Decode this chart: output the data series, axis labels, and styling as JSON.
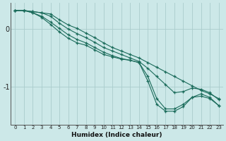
{
  "bg_color": "#cce8e8",
  "grid_color": "#aacccc",
  "line_color": "#1a6b5a",
  "marker_color": "#1a6b5a",
  "xlabel": "Humidex (Indice chaleur)",
  "xlim": [
    -0.5,
    23.5
  ],
  "ylim": [
    -1.65,
    0.45
  ],
  "yticks": [
    0,
    -1
  ],
  "ytick_labels": [
    "0",
    "-1"
  ],
  "xticks": [
    0,
    1,
    2,
    3,
    4,
    5,
    6,
    7,
    8,
    9,
    10,
    11,
    12,
    13,
    14,
    15,
    16,
    17,
    18,
    19,
    20,
    21,
    22,
    23
  ],
  "lines": [
    [
      0.32,
      0.32,
      0.3,
      0.28,
      0.26,
      0.16,
      0.07,
      0.01,
      -0.07,
      -0.15,
      -0.24,
      -0.32,
      -0.38,
      -0.44,
      -0.5,
      -0.58,
      -0.66,
      -0.74,
      -0.82,
      -0.9,
      -0.98,
      -1.06,
      -1.12,
      -1.2
    ],
    [
      0.32,
      0.32,
      0.3,
      0.28,
      0.22,
      0.1,
      0.0,
      -0.08,
      -0.15,
      -0.23,
      -0.32,
      -0.38,
      -0.44,
      -0.5,
      -0.56,
      -0.68,
      -0.82,
      -0.96,
      -1.1,
      -1.08,
      -1.02,
      -1.04,
      -1.1,
      -1.22
    ],
    [
      0.32,
      0.32,
      0.28,
      0.22,
      0.12,
      0.01,
      -0.1,
      -0.18,
      -0.24,
      -0.32,
      -0.4,
      -0.46,
      -0.51,
      -0.54,
      -0.58,
      -0.82,
      -1.2,
      -1.38,
      -1.38,
      -1.3,
      -1.18,
      -1.16,
      -1.2,
      -1.32
    ],
    [
      0.32,
      0.32,
      0.28,
      0.2,
      0.08,
      -0.05,
      -0.16,
      -0.24,
      -0.28,
      -0.36,
      -0.44,
      -0.48,
      -0.52,
      -0.54,
      -0.58,
      -0.9,
      -1.3,
      -1.42,
      -1.42,
      -1.34,
      -1.18,
      -1.12,
      -1.18,
      -1.32
    ]
  ]
}
